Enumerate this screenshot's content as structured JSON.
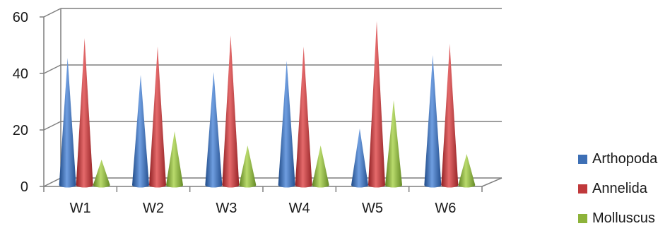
{
  "chart_data": {
    "type": "bar",
    "style": "3d-cone",
    "categories": [
      "W1",
      "W2",
      "W3",
      "W4",
      "W5",
      "W6"
    ],
    "series": [
      {
        "name": "Arthopoda",
        "color": "#3d6fb5",
        "values": [
          42,
          36,
          37,
          41,
          17,
          43
        ]
      },
      {
        "name": "Annelida",
        "color": "#c0393b",
        "values": [
          49,
          46,
          50,
          46,
          55,
          47
        ]
      },
      {
        "name": "Molluscus",
        "color": "#8db33a",
        "values": [
          6,
          16,
          11,
          11,
          27,
          8
        ]
      }
    ],
    "title": "",
    "xlabel": "",
    "ylabel": "",
    "ylim": [
      0,
      60
    ],
    "yticks": [
      0,
      20,
      40,
      60
    ],
    "grid": true,
    "legend": "right"
  }
}
